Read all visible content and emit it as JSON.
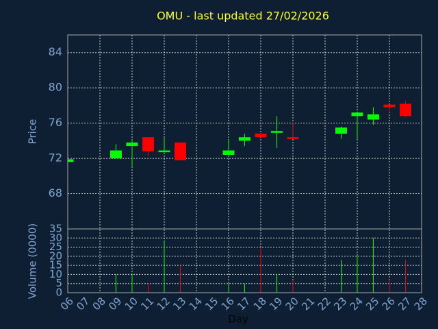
{
  "chart_data": {
    "type": "candlestick",
    "title": "OMU - last updated 27/02/2026",
    "x_label": "Day",
    "y_label": "Price",
    "y2_label": "Volume (0000)",
    "categories": [
      "06",
      "07",
      "08",
      "09",
      "10",
      "11",
      "12",
      "13",
      "14",
      "15",
      "16",
      "17",
      "18",
      "19",
      "20",
      "21",
      "22",
      "23",
      "24",
      "25",
      "26",
      "27",
      "28"
    ],
    "open": [
      71.6,
      null,
      null,
      72.0,
      73.4,
      74.4,
      72.7,
      73.8,
      null,
      null,
      72.4,
      74.0,
      74.8,
      74.9,
      74.4,
      null,
      null,
      74.8,
      76.8,
      76.4,
      78.1,
      78.2,
      null
    ],
    "high": [
      71.9,
      null,
      null,
      73.6,
      74.1,
      74.4,
      74.3,
      73.8,
      null,
      null,
      74.1,
      74.8,
      74.9,
      76.8,
      76.0,
      null,
      null,
      75.6,
      77.2,
      77.8,
      78.1,
      78.5,
      null
    ],
    "low": [
      71.6,
      null,
      null,
      72.0,
      71.1,
      72.3,
      72.5,
      71.8,
      null,
      null,
      72.4,
      73.4,
      74.4,
      73.2,
      74.2,
      null,
      null,
      74.2,
      74.2,
      75.8,
      77.2,
      76.7,
      null
    ],
    "close": [
      71.9,
      null,
      null,
      72.9,
      73.8,
      72.8,
      72.9,
      71.8,
      null,
      null,
      72.9,
      74.4,
      74.4,
      75.1,
      74.2,
      null,
      null,
      75.5,
      77.2,
      77.0,
      77.8,
      76.8,
      null
    ],
    "volume": [
      0,
      null,
      null,
      10,
      10,
      5,
      28,
      15,
      null,
      null,
      5,
      5,
      25,
      10,
      7,
      null,
      null,
      18,
      20,
      30,
      7,
      18,
      null
    ],
    "ylim": [
      64,
      86
    ],
    "yticks": [
      68,
      72,
      76,
      80,
      84
    ],
    "y2lim": [
      0,
      35
    ],
    "y2ticks": [
      0,
      5,
      10,
      15,
      20,
      25,
      30,
      35
    ],
    "up_color": "#00ff00",
    "down_color": "#ff0000",
    "grid": true
  }
}
